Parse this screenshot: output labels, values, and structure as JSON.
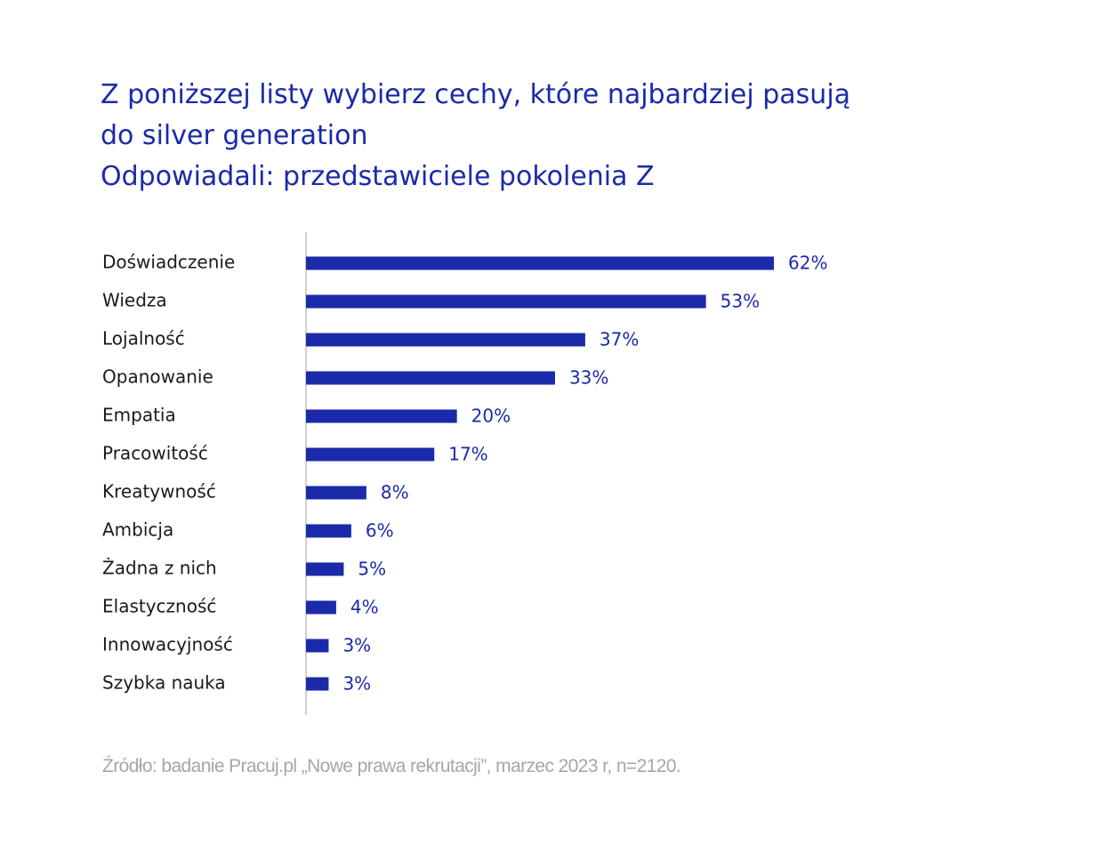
{
  "chart_data": {
    "type": "bar",
    "orientation": "horizontal",
    "title_lines": [
      "Z poniższej listy wybierz cechy, które najbardziej pasują",
      "do silver generation",
      "Odpowiadali: przedstawiciele pokolenia Z"
    ],
    "categories": [
      "Doświadczenie",
      "Wiedza",
      "Lojalność",
      "Opanowanie",
      "Empatia",
      "Pracowitość",
      "Kreatywność",
      "Ambicja",
      "Żadna z nich",
      "Elastyczność",
      "Innowacyjność",
      "Szybka nauka"
    ],
    "values": [
      62,
      53,
      37,
      33,
      20,
      17,
      8,
      6,
      5,
      4,
      3,
      3
    ],
    "value_labels": [
      "62%",
      "53%",
      "37%",
      "33%",
      "20%",
      "17%",
      "8%",
      "6%",
      "5%",
      "4%",
      "3%",
      "3%"
    ],
    "unit": "%",
    "xlim": [
      0,
      100
    ],
    "grid": false,
    "legend": "none",
    "bar_color": "#1a2aa8",
    "source": "Źródło: badanie Pracuj.pl „Nowe prawa rekrutacji”, marzec 2023 r, n=2120."
  }
}
